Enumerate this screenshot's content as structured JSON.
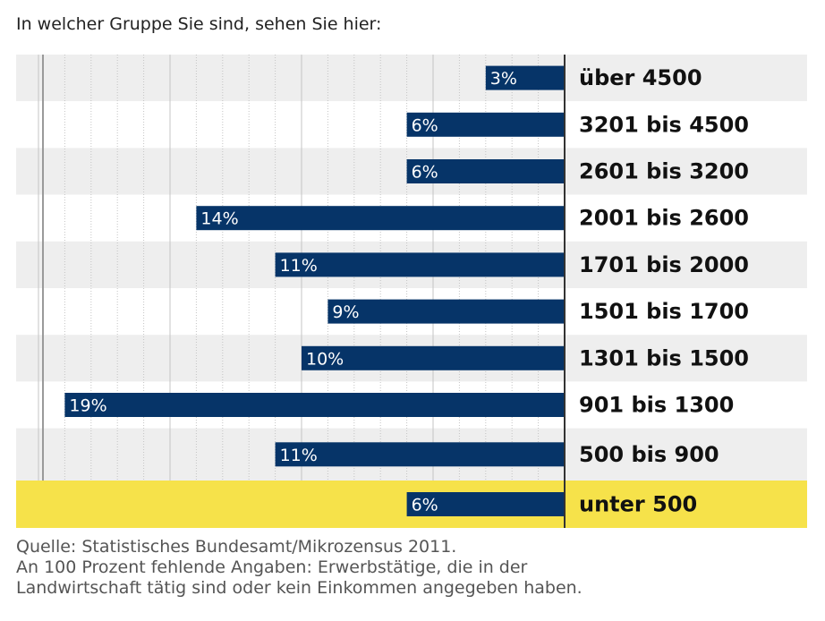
{
  "intro": "In welcher Gruppe Sie sind, sehen Sie hier:",
  "chart_data": {
    "type": "bar",
    "orientation": "horizontal",
    "title": "",
    "xlabel": "",
    "ylabel": "",
    "unit": "%",
    "categories": [
      "über 4500",
      "3201 bis 4500",
      "2601 bis 3200",
      "2001 bis 2600",
      "1701 bis 2000",
      "1501 bis 1700",
      "1301 bis 1500",
      "901 bis 1300",
      "500 bis 900",
      "unter 500"
    ],
    "values": [
      3,
      6,
      6,
      14,
      11,
      9,
      10,
      19,
      11,
      6
    ],
    "value_labels": [
      "3%",
      "6%",
      "6%",
      "14%",
      "11%",
      "9%",
      "10%",
      "19%",
      "11%",
      "6%"
    ],
    "highlighted_category": "unter 500",
    "grid": true,
    "colors": {
      "bar": "#063468",
      "bar_label": "#ffffff",
      "row_shaded": "#eeeeee",
      "row_plain": "#ffffff",
      "row_highlight": "#f6e24a",
      "gridline": "#c4c4c4",
      "axis": "#333333",
      "category_text": "#111111"
    }
  },
  "source": {
    "line1": "Quelle: Statistisches Bundesamt/Mikrozensus 2011.",
    "line2": "An 100 Prozent fehlende Angaben: Erwerbstätige, die in der",
    "line3": "Landwirtschaft tätig sind oder kein Einkommen angegeben haben."
  }
}
